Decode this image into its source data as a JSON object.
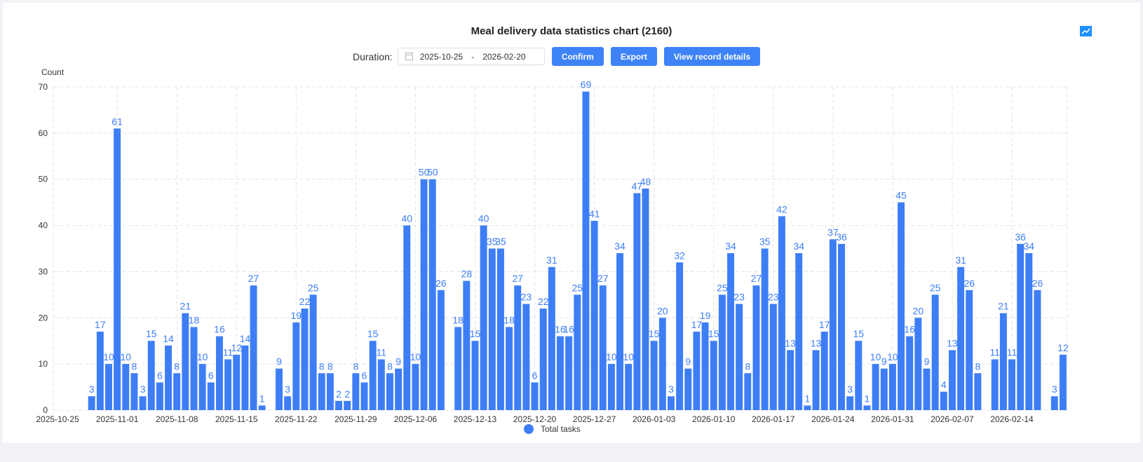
{
  "header": {
    "title": "Meal delivery data statistics chart (2160)",
    "duration_label": "Duration:",
    "start_date": "2025-10-25",
    "range_separator": "-",
    "end_date": "2026-02-20",
    "confirm_label": "Confirm",
    "export_label": "Export",
    "view_details_label": "View record details",
    "trend_icon": "line-chart-icon",
    "calendar_icon": "calendar-icon"
  },
  "colors": {
    "bar": "#3d7ef6",
    "label": "#3d7ef6",
    "accent": "#3e82f7"
  },
  "chart_data": {
    "type": "bar",
    "title": "Meal delivery data statistics chart (2160)",
    "ylabel": "Count",
    "xlabel": "",
    "ylim": [
      0,
      70
    ],
    "yticks": [
      0,
      10,
      20,
      30,
      40,
      50,
      60,
      70
    ],
    "grid": true,
    "legend": {
      "entries": [
        "Total tasks"
      ],
      "placement": "bottom-center"
    },
    "start_date": "2025-10-25",
    "xtick_labels": [
      "2025-10-25",
      "2025-11-01",
      "2025-11-08",
      "2025-11-15",
      "2025-11-22",
      "2025-11-29",
      "2025-12-06",
      "2025-12-13",
      "2025-12-20",
      "2025-12-27",
      "2026-01-03",
      "2026-01-10",
      "2026-01-17",
      "2026-01-24",
      "2026-01-31",
      "2026-02-07",
      "2026-02-14"
    ],
    "series": [
      {
        "name": "Total tasks",
        "values": [
          0,
          0,
          0,
          0,
          3,
          17,
          10,
          61,
          10,
          8,
          3,
          15,
          6,
          14,
          8,
          21,
          18,
          10,
          6,
          16,
          11,
          12,
          14,
          27,
          1,
          0,
          9,
          3,
          19,
          22,
          25,
          8,
          8,
          2,
          2,
          8,
          6,
          15,
          11,
          8,
          9,
          40,
          10,
          50,
          50,
          26,
          0,
          18,
          28,
          15,
          40,
          35,
          35,
          18,
          27,
          23,
          6,
          22,
          31,
          16,
          16,
          25,
          69,
          41,
          27,
          10,
          34,
          10,
          47,
          48,
          15,
          20,
          3,
          32,
          9,
          17,
          19,
          15,
          25,
          34,
          23,
          8,
          27,
          35,
          23,
          42,
          13,
          34,
          1,
          13,
          17,
          37,
          36,
          3,
          15,
          1,
          10,
          9,
          10,
          45,
          16,
          20,
          9,
          25,
          4,
          13,
          31,
          26,
          8,
          0,
          11,
          21,
          11,
          36,
          34,
          26,
          0,
          3,
          12
        ]
      }
    ]
  }
}
